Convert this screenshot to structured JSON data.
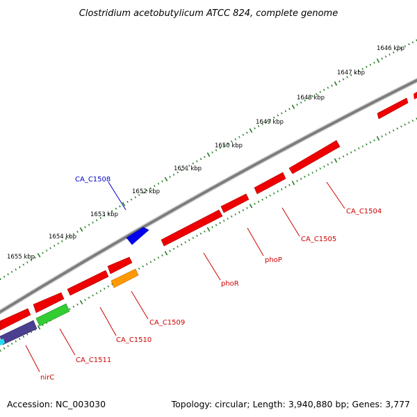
{
  "title": "Clostridium acetobutylicum ATCC 824, complete genome",
  "accession": "Accession: NC_003030",
  "topology": "Topology: circular; Length: 3,940,880 bp; Genes: 3,777",
  "colors": {
    "backbone": "#8a8a8a",
    "tick": "#1f7a1f",
    "forward_label": "#0000cc",
    "reverse_label": "#cc0000"
  },
  "kbp_labels": [
    "1646 kbp",
    "1647 kbp",
    "1648 kbp",
    "1649 kbp",
    "1650 kbp",
    "1651 kbp",
    "1652 kbp",
    "1653 kbp",
    "1654 kbp",
    "1655 kbp"
  ],
  "genes": [
    {
      "name": "CA_C1508",
      "strand": "forward",
      "color": "#0000ee"
    },
    {
      "name": "CA_C1504",
      "strand": "reverse",
      "color": "#ee0000"
    },
    {
      "name": "CA_C1505",
      "strand": "reverse",
      "color": "#ee0000"
    },
    {
      "name": "phoP",
      "strand": "reverse",
      "color": "#ee0000"
    },
    {
      "name": "phoR",
      "strand": "reverse",
      "color": "#ee0000"
    },
    {
      "name": "CA_C1509",
      "strand": "reverse",
      "color": "#ff9900"
    },
    {
      "name": "CA_C1510",
      "strand": "reverse",
      "color": "#ee0000"
    },
    {
      "name": "CA_C1511",
      "strand": "reverse",
      "color": "#33cc33"
    },
    {
      "name": "nirC",
      "strand": "reverse",
      "color": "#4b3f8f"
    }
  ]
}
